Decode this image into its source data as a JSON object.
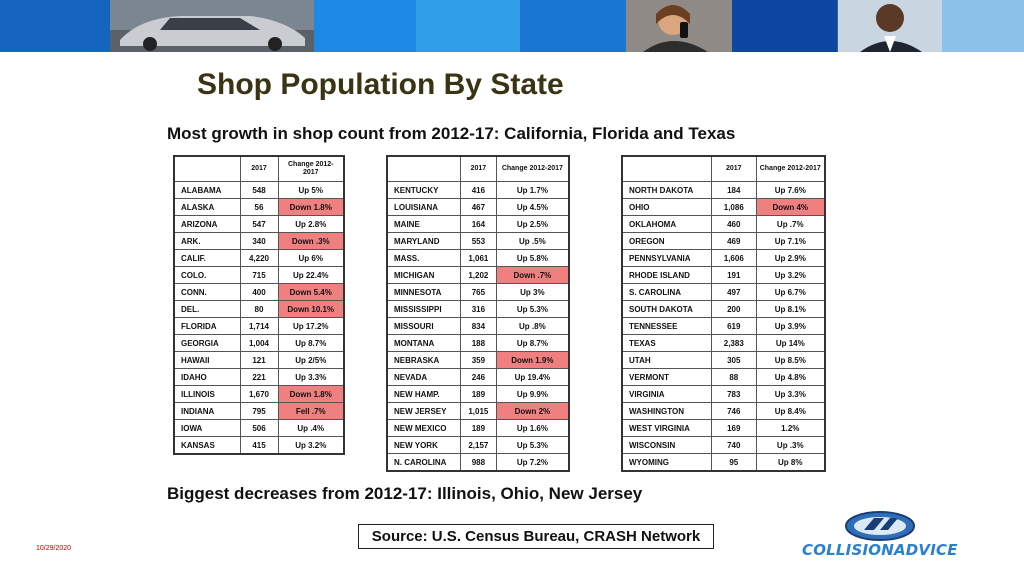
{
  "banner": {
    "colors": [
      "#1565c0",
      "#0f5fb8",
      "#1e88e5",
      "#2f9de8",
      "#1976d2",
      "#3aa0e6",
      "#0d47a1",
      "#7dbbe8"
    ]
  },
  "title": "Shop Population By State",
  "subtitle": "Most growth in shop count from 2012-17: California, Florida and Texas",
  "footer_note": "Biggest decreases from 2012-17: Illinois, Ohio, New Jersey",
  "source": "Source: U.S. Census Bureau, CRASH Network",
  "date": "10/29/2020",
  "logo_text": "COLLISIONADVICE",
  "table_headers": {
    "state": "",
    "year": "2017",
    "change": "Change 2012-2017"
  },
  "negative_color": "#f08080",
  "tables": [
    {
      "rows": [
        {
          "state": "ALABAMA",
          "count": "548",
          "change": "Up 5%",
          "negative": false
        },
        {
          "state": "ALASKA",
          "count": "56",
          "change": "Down 1.8%",
          "negative": true
        },
        {
          "state": "ARIZONA",
          "count": "547",
          "change": "Up 2.8%",
          "negative": false
        },
        {
          "state": "ARK.",
          "count": "340",
          "change": "Down .3%",
          "negative": true
        },
        {
          "state": "CALIF.",
          "count": "4,220",
          "change": "Up 6%",
          "negative": false
        },
        {
          "state": "COLO.",
          "count": "715",
          "change": "Up 22.4%",
          "negative": false
        },
        {
          "state": "CONN.",
          "count": "400",
          "change": "Down 5.4%",
          "negative": true
        },
        {
          "state": "DEL.",
          "count": "80",
          "change": "Down 10.1%",
          "negative": true
        },
        {
          "state": "FLORIDA",
          "count": "1,714",
          "change": "Up 17.2%",
          "negative": false
        },
        {
          "state": "GEORGIA",
          "count": "1,004",
          "change": "Up 8.7%",
          "negative": false
        },
        {
          "state": "HAWAII",
          "count": "121",
          "change": "Up 2/5%",
          "negative": false
        },
        {
          "state": "IDAHO",
          "count": "221",
          "change": "Up 3.3%",
          "negative": false
        },
        {
          "state": "ILLINOIS",
          "count": "1,670",
          "change": "Down 1.8%",
          "negative": true
        },
        {
          "state": "INDIANA",
          "count": "795",
          "change": "Fell .7%",
          "negative": true
        },
        {
          "state": "IOWA",
          "count": "506",
          "change": "Up .4%",
          "negative": false
        },
        {
          "state": "KANSAS",
          "count": "415",
          "change": "Up 3.2%",
          "negative": false
        }
      ]
    },
    {
      "rows": [
        {
          "state": "KENTUCKY",
          "count": "416",
          "change": "Up 1.7%",
          "negative": false
        },
        {
          "state": "LOUISIANA",
          "count": "467",
          "change": "Up 4.5%",
          "negative": false
        },
        {
          "state": "MAINE",
          "count": "164",
          "change": "Up 2.5%",
          "negative": false
        },
        {
          "state": "MARYLAND",
          "count": "553",
          "change": "Up .5%",
          "negative": false
        },
        {
          "state": "MASS.",
          "count": "1,061",
          "change": "Up 5.8%",
          "negative": false
        },
        {
          "state": "MICHIGAN",
          "count": "1,202",
          "change": "Down .7%",
          "negative": true
        },
        {
          "state": "MINNESOTA",
          "count": "765",
          "change": "Up 3%",
          "negative": false
        },
        {
          "state": "MISSISSIPPI",
          "count": "316",
          "change": "Up 5.3%",
          "negative": false
        },
        {
          "state": "MISSOURI",
          "count": "834",
          "change": "Up .8%",
          "negative": false
        },
        {
          "state": "MONTANA",
          "count": "188",
          "change": "Up 8.7%",
          "negative": false
        },
        {
          "state": "NEBRASKA",
          "count": "359",
          "change": "Down 1.9%",
          "negative": true
        },
        {
          "state": "NEVADA",
          "count": "246",
          "change": "Up 19.4%",
          "negative": false
        },
        {
          "state": "NEW HAMP.",
          "count": "189",
          "change": "Up 9.9%",
          "negative": false
        },
        {
          "state": "NEW JERSEY",
          "count": "1,015",
          "change": "Down 2%",
          "negative": true
        },
        {
          "state": "NEW MEXICO",
          "count": "189",
          "change": "Up 1.6%",
          "negative": false
        },
        {
          "state": "NEW YORK",
          "count": "2,157",
          "change": "Up 5.3%",
          "negative": false
        },
        {
          "state": "N. CAROLINA",
          "count": "988",
          "change": "Up 7.2%",
          "negative": false
        }
      ]
    },
    {
      "rows": [
        {
          "state": "NORTH DAKOTA",
          "count": "184",
          "change": "Up 7.6%",
          "negative": false
        },
        {
          "state": "OHIO",
          "count": "1,086",
          "change": "Down 4%",
          "negative": true
        },
        {
          "state": "OKLAHOMA",
          "count": "460",
          "change": "Up .7%",
          "negative": false
        },
        {
          "state": "OREGON",
          "count": "469",
          "change": "Up 7.1%",
          "negative": false
        },
        {
          "state": "PENNSYLVANIA",
          "count": "1,606",
          "change": "Up 2.9%",
          "negative": false
        },
        {
          "state": "RHODE ISLAND",
          "count": "191",
          "change": "Up 3.2%",
          "negative": false
        },
        {
          "state": "S. CAROLINA",
          "count": "497",
          "change": "Up 6.7%",
          "negative": false
        },
        {
          "state": "SOUTH DAKOTA",
          "count": "200",
          "change": "Up 8.1%",
          "negative": false
        },
        {
          "state": "TENNESSEE",
          "count": "619",
          "change": "Up 3.9%",
          "negative": false
        },
        {
          "state": "TEXAS",
          "count": "2,383",
          "change": "Up 14%",
          "negative": false
        },
        {
          "state": "UTAH",
          "count": "305",
          "change": "Up 8.5%",
          "negative": false
        },
        {
          "state": "VERMONT",
          "count": "88",
          "change": "Up 4.8%",
          "negative": false
        },
        {
          "state": "VIRGINIA",
          "count": "783",
          "change": "Up 3.3%",
          "negative": false
        },
        {
          "state": "WASHINGTON",
          "count": "746",
          "change": "Up 8.4%",
          "negative": false
        },
        {
          "state": "WEST VIRGINIA",
          "count": "169",
          "change": "1.2%",
          "negative": false
        },
        {
          "state": "WISCONSIN",
          "count": "740",
          "change": "Up .3%",
          "negative": false
        },
        {
          "state": "WYOMING",
          "count": "95",
          "change": "Up 8%",
          "negative": false
        }
      ]
    }
  ]
}
